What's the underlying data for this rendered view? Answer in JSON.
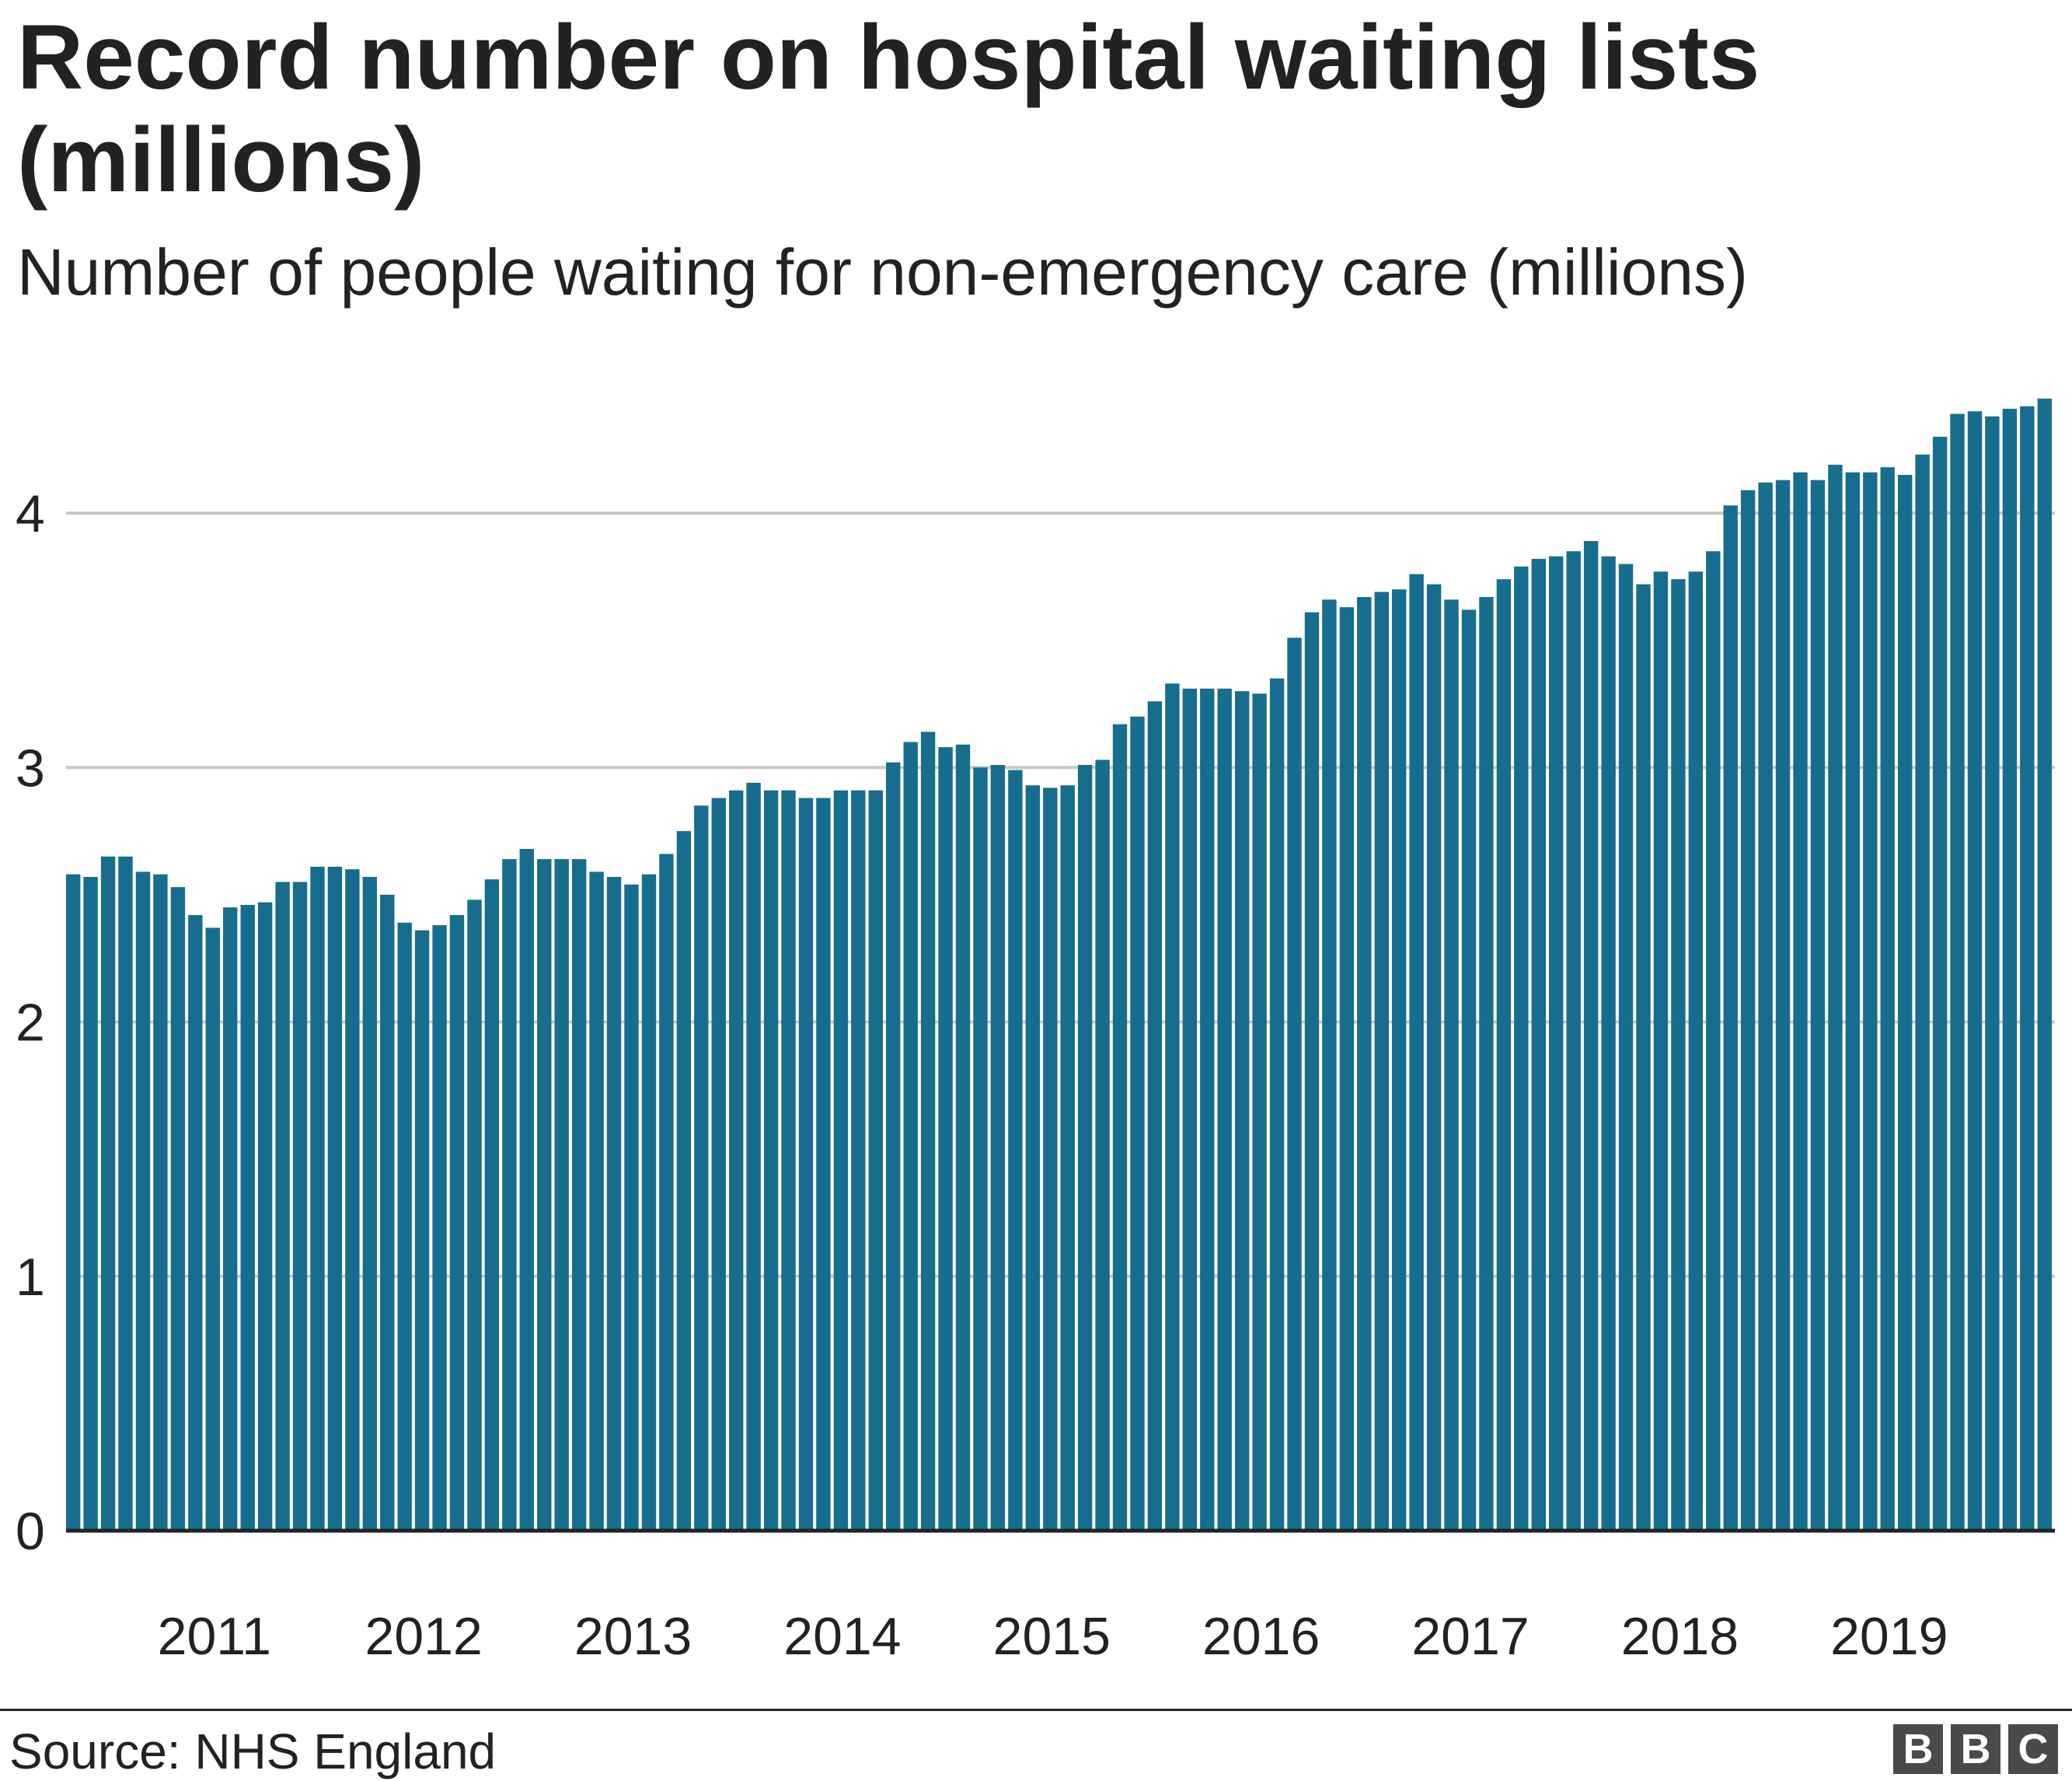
{
  "chart_data": {
    "type": "bar",
    "title": "Record number on hospital waiting lists (millions)",
    "subtitle": "Number of people waiting for non-emergency care (millions)",
    "xlabel": "",
    "ylabel": "",
    "ylim": [
      0,
      4.45
    ],
    "y_ticks": [
      "0",
      "1",
      "2",
      "3",
      "4"
    ],
    "x_ticks": [
      "2011",
      "2012",
      "2013",
      "2014",
      "2015",
      "2016",
      "2017",
      "2018",
      "2019"
    ],
    "grid": true,
    "bar_color": "#176d8e",
    "values": [
      2.58,
      2.57,
      2.65,
      2.65,
      2.59,
      2.58,
      2.53,
      2.42,
      2.37,
      2.45,
      2.46,
      2.47,
      2.55,
      2.55,
      2.61,
      2.61,
      2.6,
      2.57,
      2.5,
      2.39,
      2.36,
      2.38,
      2.42,
      2.48,
      2.56,
      2.64,
      2.68,
      2.64,
      2.64,
      2.64,
      2.59,
      2.57,
      2.54,
      2.58,
      2.66,
      2.75,
      2.85,
      2.88,
      2.91,
      2.94,
      2.91,
      2.91,
      2.88,
      2.88,
      2.91,
      2.91,
      2.91,
      3.02,
      3.1,
      3.14,
      3.08,
      3.09,
      3.0,
      3.01,
      2.99,
      2.93,
      2.92,
      2.93,
      3.01,
      3.03,
      3.17,
      3.2,
      3.26,
      3.33,
      3.31,
      3.31,
      3.31,
      3.3,
      3.29,
      3.35,
      3.51,
      3.61,
      3.66,
      3.63,
      3.67,
      3.69,
      3.7,
      3.76,
      3.72,
      3.66,
      3.62,
      3.67,
      3.74,
      3.79,
      3.82,
      3.83,
      3.85,
      3.89,
      3.83,
      3.8,
      3.72,
      3.77,
      3.74,
      3.77,
      3.85,
      4.03,
      4.09,
      4.12,
      4.13,
      4.16,
      4.13,
      4.19,
      4.16,
      4.16,
      4.18,
      4.15,
      4.23,
      4.3,
      4.39,
      4.4,
      4.38,
      4.41,
      4.42,
      4.45
    ]
  },
  "footer": {
    "source": "Source: NHS England",
    "logo": [
      "B",
      "B",
      "C"
    ]
  }
}
